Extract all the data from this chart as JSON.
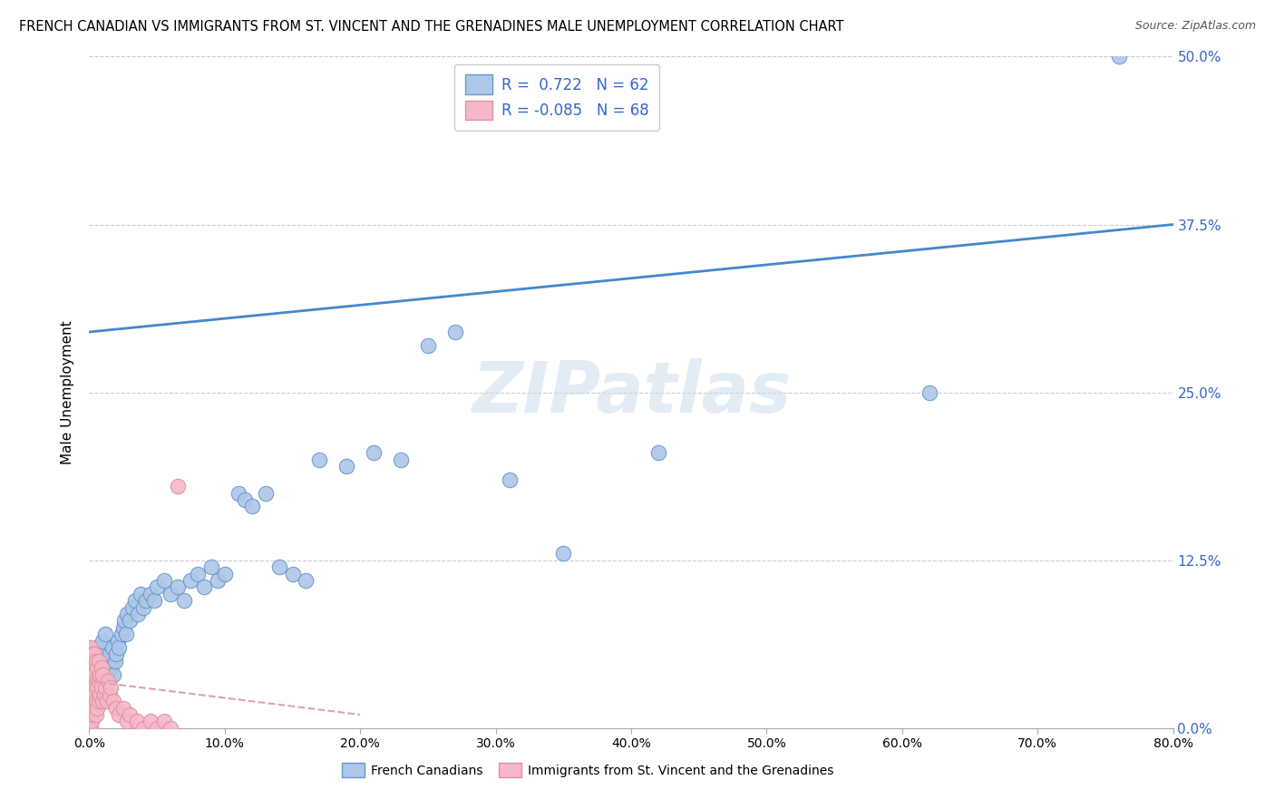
{
  "title": "FRENCH CANADIAN VS IMMIGRANTS FROM ST. VINCENT AND THE GRENADINES MALE UNEMPLOYMENT CORRELATION CHART",
  "source": "Source: ZipAtlas.com",
  "ylabel": "Male Unemployment",
  "blue_R": 0.722,
  "blue_N": 62,
  "pink_R": -0.085,
  "pink_N": 68,
  "blue_color": "#aec6e8",
  "pink_color": "#f4b8c8",
  "blue_edge_color": "#6699cc",
  "pink_edge_color": "#e090a0",
  "blue_line_color": "#4488cc",
  "pink_line_color": "#e0a0b0",
  "text_color": "#3366cc",
  "legend_label_blue": "French Canadians",
  "legend_label_pink": "Immigrants from St. Vincent and the Grenadines",
  "xlim": [
    0.0,
    0.8
  ],
  "ylim": [
    0.0,
    0.5
  ],
  "xtick_vals": [
    0.0,
    0.1,
    0.2,
    0.3,
    0.4,
    0.5,
    0.6,
    0.7,
    0.8
  ],
  "xtick_labels": [
    "0.0%",
    "10.0%",
    "20.0%",
    "30.0%",
    "40.0%",
    "50.0%",
    "60.0%",
    "70.0%",
    "80.0%"
  ],
  "ytick_vals": [
    0.0,
    0.125,
    0.25,
    0.375,
    0.5
  ],
  "ytick_labels": [
    "0.0%",
    "12.5%",
    "25.0%",
    "37.5%",
    "50.0%"
  ],
  "watermark_text": "ZIPatlas",
  "blue_line_x0": 0.0,
  "blue_line_y0": 0.295,
  "blue_line_x1": 0.8,
  "blue_line_y1": 0.375,
  "pink_line_x0": 0.0,
  "pink_line_y0": 0.035,
  "pink_line_x1": 0.2,
  "pink_line_y1": 0.01,
  "blue_x": [
    0.003,
    0.005,
    0.006,
    0.007,
    0.008,
    0.009,
    0.01,
    0.011,
    0.012,
    0.013,
    0.014,
    0.015,
    0.016,
    0.017,
    0.018,
    0.019,
    0.02,
    0.021,
    0.022,
    0.024,
    0.025,
    0.026,
    0.027,
    0.028,
    0.03,
    0.032,
    0.034,
    0.036,
    0.038,
    0.04,
    0.042,
    0.045,
    0.048,
    0.05,
    0.055,
    0.06,
    0.065,
    0.07,
    0.075,
    0.08,
    0.085,
    0.09,
    0.095,
    0.1,
    0.11,
    0.115,
    0.12,
    0.13,
    0.14,
    0.15,
    0.16,
    0.17,
    0.19,
    0.21,
    0.23,
    0.25,
    0.27,
    0.31,
    0.35,
    0.42,
    0.62,
    0.76
  ],
  "blue_y": [
    0.05,
    0.04,
    0.06,
    0.045,
    0.055,
    0.03,
    0.065,
    0.035,
    0.07,
    0.04,
    0.05,
    0.055,
    0.045,
    0.06,
    0.04,
    0.05,
    0.055,
    0.065,
    0.06,
    0.07,
    0.075,
    0.08,
    0.07,
    0.085,
    0.08,
    0.09,
    0.095,
    0.085,
    0.1,
    0.09,
    0.095,
    0.1,
    0.095,
    0.105,
    0.11,
    0.1,
    0.105,
    0.095,
    0.11,
    0.115,
    0.105,
    0.12,
    0.11,
    0.115,
    0.175,
    0.17,
    0.165,
    0.175,
    0.12,
    0.115,
    0.11,
    0.2,
    0.195,
    0.205,
    0.2,
    0.285,
    0.295,
    0.185,
    0.13,
    0.205,
    0.25,
    0.5
  ],
  "pink_x": [
    0.0,
    0.0,
    0.0,
    0.0,
    0.0,
    0.0,
    0.0,
    0.0,
    0.0,
    0.0,
    0.0,
    0.0,
    0.001,
    0.001,
    0.001,
    0.001,
    0.001,
    0.001,
    0.001,
    0.002,
    0.002,
    0.002,
    0.002,
    0.002,
    0.002,
    0.003,
    0.003,
    0.003,
    0.003,
    0.004,
    0.004,
    0.004,
    0.004,
    0.005,
    0.005,
    0.005,
    0.005,
    0.006,
    0.006,
    0.006,
    0.007,
    0.007,
    0.007,
    0.008,
    0.008,
    0.009,
    0.009,
    0.01,
    0.01,
    0.011,
    0.012,
    0.013,
    0.014,
    0.015,
    0.016,
    0.018,
    0.02,
    0.022,
    0.025,
    0.028,
    0.03,
    0.035,
    0.04,
    0.045,
    0.05,
    0.055,
    0.06,
    0.065
  ],
  "pink_y": [
    0.0,
    0.005,
    0.01,
    0.015,
    0.02,
    0.025,
    0.03,
    0.035,
    0.04,
    0.045,
    0.05,
    0.06,
    0.0,
    0.01,
    0.02,
    0.03,
    0.04,
    0.05,
    0.06,
    0.005,
    0.015,
    0.025,
    0.035,
    0.045,
    0.055,
    0.01,
    0.02,
    0.03,
    0.05,
    0.015,
    0.025,
    0.04,
    0.055,
    0.01,
    0.02,
    0.035,
    0.05,
    0.015,
    0.03,
    0.045,
    0.02,
    0.035,
    0.05,
    0.025,
    0.04,
    0.03,
    0.045,
    0.02,
    0.04,
    0.025,
    0.03,
    0.02,
    0.035,
    0.025,
    0.03,
    0.02,
    0.015,
    0.01,
    0.015,
    0.005,
    0.01,
    0.005,
    0.0,
    0.005,
    0.0,
    0.005,
    0.0,
    0.18
  ]
}
